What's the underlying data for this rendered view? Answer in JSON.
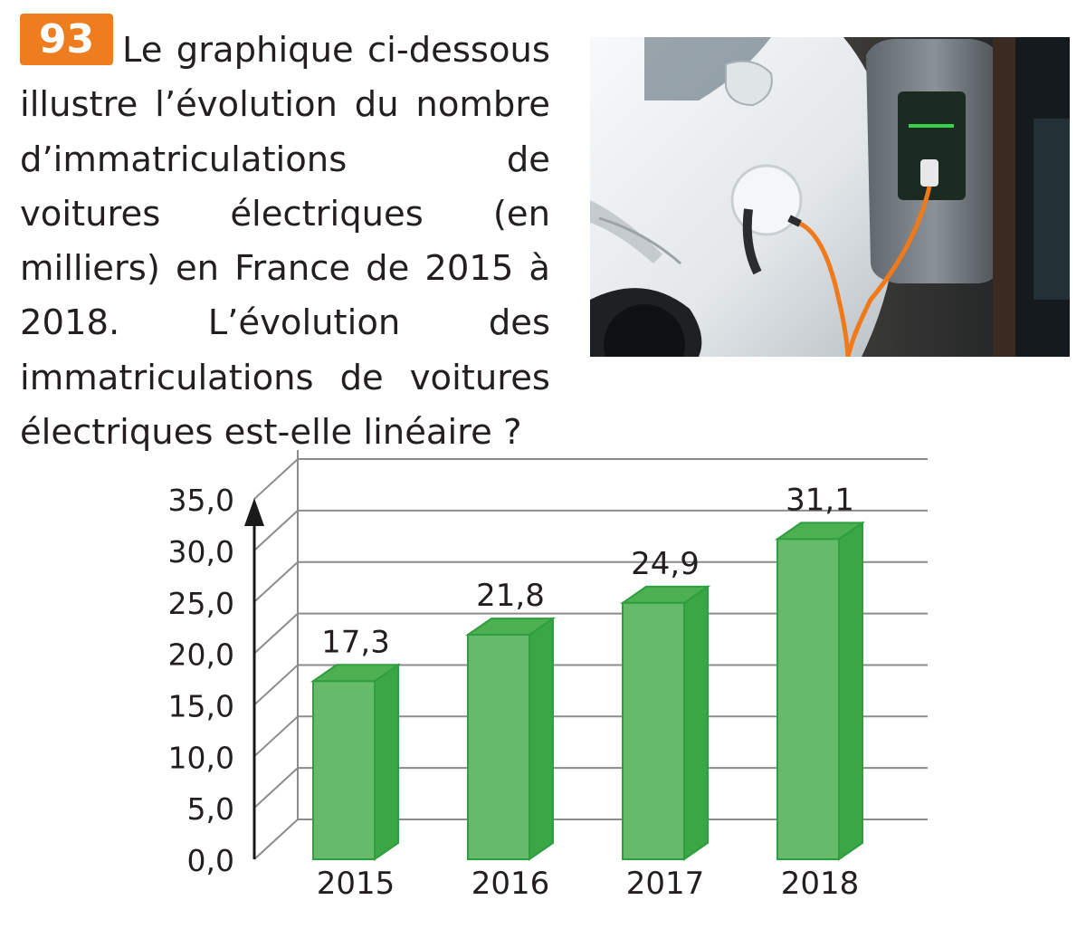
{
  "exercise": {
    "number": "93",
    "question": "Le graphique ci-dessous illustre l’évolution du nombre d’immatriculations de voitures électriques (en milliers) en France de 2015 à 2018. L’évolution des immatriculations de voitures électriques est-elle linéaire ?"
  },
  "photo": {
    "subject": "electric-car-charging",
    "colors": {
      "car": "#eef1f3",
      "cable": "#f07a1a",
      "charger": "#7f8a92",
      "screen": "#1c2b22",
      "led": "#3ad14a"
    }
  },
  "chart_data": {
    "type": "bar",
    "categories": [
      "2015",
      "2016",
      "2017",
      "2018"
    ],
    "values": [
      17.3,
      21.8,
      24.9,
      31.1
    ],
    "value_labels": [
      "17,3",
      "21,8",
      "24,9",
      "31,1"
    ],
    "y_ticks": [
      "0,0",
      "5,0",
      "10,0",
      "15,0",
      "20,0",
      "25,0",
      "30,0",
      "35,0"
    ],
    "ylim": [
      0,
      35
    ],
    "grid": true,
    "style": "3d-bars",
    "colors": {
      "bar_front": "#66bb6a",
      "bar_top": "#4caf50",
      "bar_side": "#3aa646",
      "bar_edge": "#2e9e3f",
      "grid": "#8c8c8c"
    }
  }
}
